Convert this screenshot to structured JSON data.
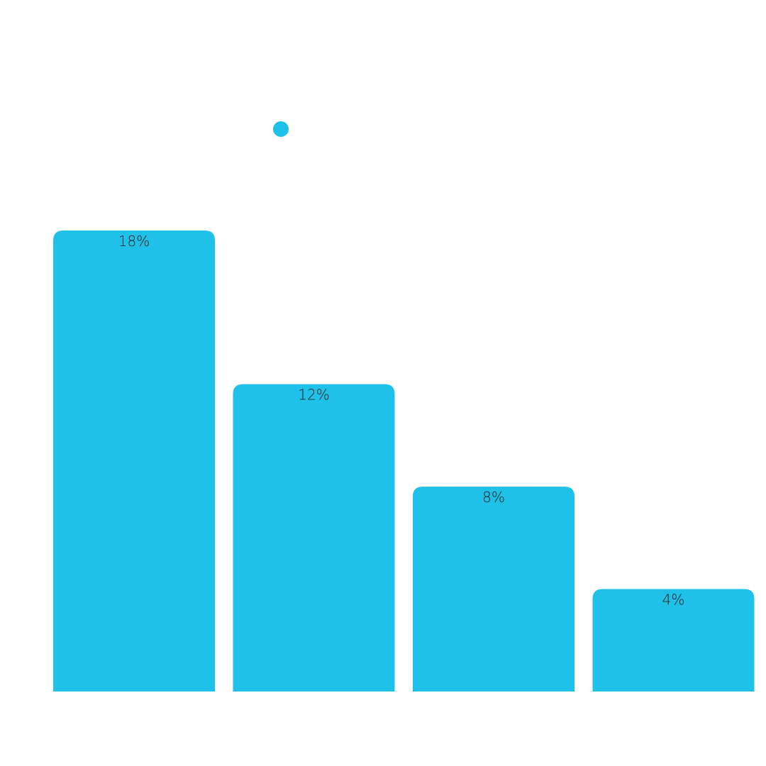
{
  "chart_data": {
    "type": "bar",
    "categories": [
      "",
      "",
      "",
      ""
    ],
    "series": [
      {
        "values": [
          18,
          12,
          8,
          4
        ],
        "color": "#1fc1e8"
      }
    ],
    "value_labels": [
      "18%",
      "12%",
      "8%",
      "4%"
    ],
    "ylim": [
      0,
      27
    ],
    "grid": false,
    "legend": {
      "placement": "top-center",
      "marker": "circle",
      "label": ""
    },
    "title": "",
    "xlabel": "",
    "ylabel": ""
  }
}
